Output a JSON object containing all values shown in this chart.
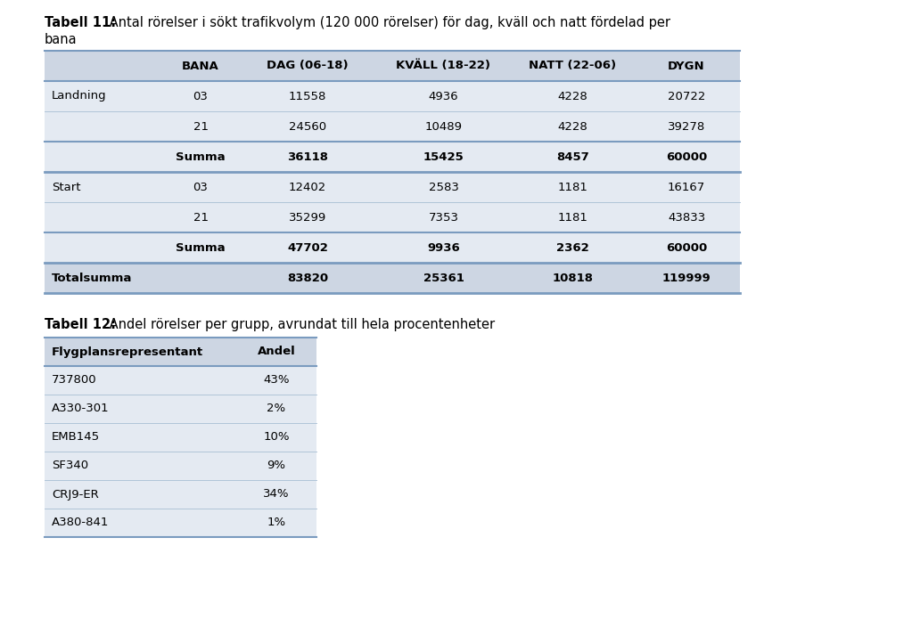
{
  "bg_color": "#ffffff",
  "title1_bold": "Tabell 11:",
  "title1_rest": " Antal rörelser i sökt trafikvolym (120 000 rörelser) för dag, kväll och natt fördelad per",
  "title1_line2": "bana",
  "table1_header_bg": "#cdd6e3",
  "table1_row_bg": "#e4eaf2",
  "table1_total_bg": "#cdd6e3",
  "table1_header_labels": [
    "",
    "BANA",
    "DAG (06-18)",
    "KVÄLL (18-22)",
    "NATT (22-06)",
    "DYGN"
  ],
  "table1_rows": [
    [
      "Landning",
      "03",
      "11558",
      "4936",
      "4228",
      "20722"
    ],
    [
      "",
      "21",
      "24560",
      "10489",
      "4228",
      "39278"
    ],
    [
      "",
      "Summa",
      "36118",
      "15425",
      "8457",
      "60000"
    ],
    [
      "Start",
      "03",
      "12402",
      "2583",
      "1181",
      "16167"
    ],
    [
      "",
      "21",
      "35299",
      "7353",
      "1181",
      "43833"
    ],
    [
      "",
      "Summa",
      "47702",
      "9936",
      "2362",
      "60000"
    ],
    [
      "Totalsumma",
      "",
      "83820",
      "25361",
      "10818",
      "119999"
    ]
  ],
  "title2_bold": "Tabell 12:",
  "title2_rest": " Andel rörelser per grupp, avrundat till hela procentenheter",
  "table2_header_bg": "#cdd6e3",
  "table2_row_bg": "#e4eaf2",
  "table2_header_labels": [
    "Flygplansrepresentant",
    "Andel"
  ],
  "table2_rows": [
    [
      "737800",
      "43%"
    ],
    [
      "A330-301",
      "2%"
    ],
    [
      "EMB145",
      "10%"
    ],
    [
      "SF340",
      "9%"
    ],
    [
      "CRJ9-ER",
      "34%"
    ],
    [
      "A380-841",
      "1%"
    ]
  ],
  "line_color": "#7a9bbf",
  "line_color_light": "#b0c4d8"
}
